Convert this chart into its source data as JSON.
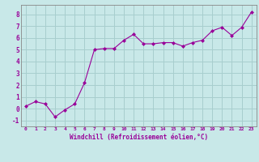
{
  "x": [
    0,
    1,
    2,
    3,
    4,
    5,
    6,
    7,
    8,
    9,
    10,
    11,
    12,
    13,
    14,
    15,
    16,
    17,
    18,
    19,
    20,
    21,
    22,
    23
  ],
  "y": [
    0.2,
    0.6,
    0.4,
    -0.7,
    -0.1,
    0.4,
    2.2,
    5.0,
    5.1,
    5.1,
    5.8,
    6.3,
    5.5,
    5.5,
    5.6,
    5.6,
    5.3,
    5.6,
    5.8,
    6.6,
    6.9,
    6.2,
    6.9,
    8.2
  ],
  "line_color": "#990099",
  "marker_color": "#990099",
  "bg_color": "#c8e8e8",
  "grid_color": "#a8cece",
  "xlabel": "Windchill (Refroidissement éolien,°C)",
  "xlabel_color": "#990099",
  "yticks": [
    -1,
    0,
    1,
    2,
    3,
    4,
    5,
    6,
    7,
    8
  ],
  "xticks": [
    0,
    1,
    2,
    3,
    4,
    5,
    6,
    7,
    8,
    9,
    10,
    11,
    12,
    13,
    14,
    15,
    16,
    17,
    18,
    19,
    20,
    21,
    22,
    23
  ],
  "xlim": [
    -0.5,
    23.5
  ],
  "ylim": [
    -1.5,
    8.8
  ],
  "tick_color": "#990099",
  "axis_color": "#888888"
}
